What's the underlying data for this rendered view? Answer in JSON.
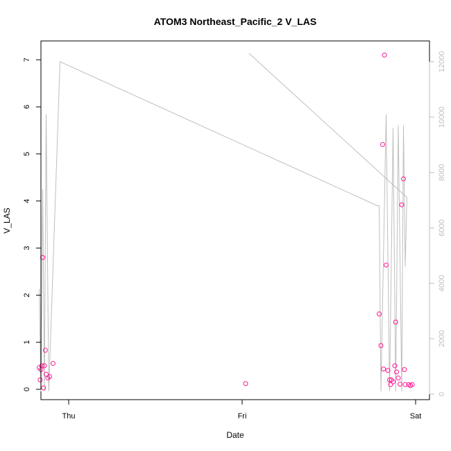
{
  "chart_data": {
    "type": "scatter",
    "title": "ATOM3 Northeast_Pacific_2 V_LAS",
    "xlabel": "Date",
    "ylabel": "V_LAS",
    "xlim": [
      -0.16,
      2.08
    ],
    "ylim": [
      -0.22,
      7.4
    ],
    "x_ticks": [
      {
        "value": 0,
        "label": "Thu"
      },
      {
        "value": 1,
        "label": "Fri"
      },
      {
        "value": 2,
        "label": "Sat"
      }
    ],
    "y_ticks": [
      0,
      1,
      2,
      3,
      4,
      5,
      6,
      7
    ],
    "y2lim": [
      -200,
      12750
    ],
    "y2_ticks": [
      0,
      2000,
      4000,
      6000,
      8000,
      10000,
      12000
    ],
    "grid": false,
    "colors": {
      "points": "#ff1493",
      "line": "#bebebe",
      "axis": "#000000",
      "axis_right": "#bebebe"
    },
    "series": [
      {
        "type": "scatter",
        "axis": "left",
        "points": [
          [
            -0.17,
            0.46
          ],
          [
            -0.165,
            0.2
          ],
          [
            -0.16,
            0.42
          ],
          [
            -0.155,
            0.5
          ],
          [
            -0.15,
            2.8
          ],
          [
            -0.145,
            0.03
          ],
          [
            -0.14,
            0.5
          ],
          [
            -0.135,
            0.83
          ],
          [
            -0.13,
            0.32
          ],
          [
            -0.12,
            0.24
          ],
          [
            -0.11,
            0.27
          ],
          [
            -0.09,
            0.55
          ],
          [
            1.02,
            0.12
          ],
          [
            1.79,
            1.6
          ],
          [
            1.8,
            0.93
          ],
          [
            1.81,
            5.2
          ],
          [
            1.815,
            0.43
          ],
          [
            1.82,
            7.1
          ],
          [
            1.83,
            2.64
          ],
          [
            1.84,
            0.4
          ],
          [
            1.85,
            0.2
          ],
          [
            1.855,
            0.1
          ],
          [
            1.86,
            0.2
          ],
          [
            1.87,
            0.16
          ],
          [
            1.88,
            0.5
          ],
          [
            1.885,
            1.43
          ],
          [
            1.89,
            0.37
          ],
          [
            1.9,
            0.24
          ],
          [
            1.91,
            0.11
          ],
          [
            1.92,
            3.92
          ],
          [
            1.93,
            4.47
          ],
          [
            1.935,
            0.42
          ],
          [
            1.94,
            0.1
          ],
          [
            1.96,
            0.1
          ],
          [
            1.97,
            0.08
          ],
          [
            1.98,
            0.1
          ]
        ]
      },
      {
        "type": "line",
        "axis": "right",
        "points": [
          [
            -0.17,
            3800
          ],
          [
            -0.16,
            100
          ],
          [
            -0.15,
            7400
          ],
          [
            -0.14,
            100
          ],
          [
            -0.13,
            10100
          ],
          [
            -0.115,
            100
          ],
          [
            -0.05,
            12000
          ],
          [
            1.78,
            6800
          ],
          [
            1.79,
            6800
          ],
          [
            1.8,
            100
          ],
          [
            1.83,
            10100
          ],
          [
            1.85,
            100
          ],
          [
            1.87,
            9600
          ],
          [
            1.885,
            100
          ],
          [
            1.9,
            9700
          ],
          [
            1.92,
            100
          ],
          [
            1.93,
            9700
          ],
          [
            1.94,
            4600
          ],
          [
            1.95,
            7100
          ],
          [
            1.04,
            12300
          ]
        ]
      }
    ]
  }
}
